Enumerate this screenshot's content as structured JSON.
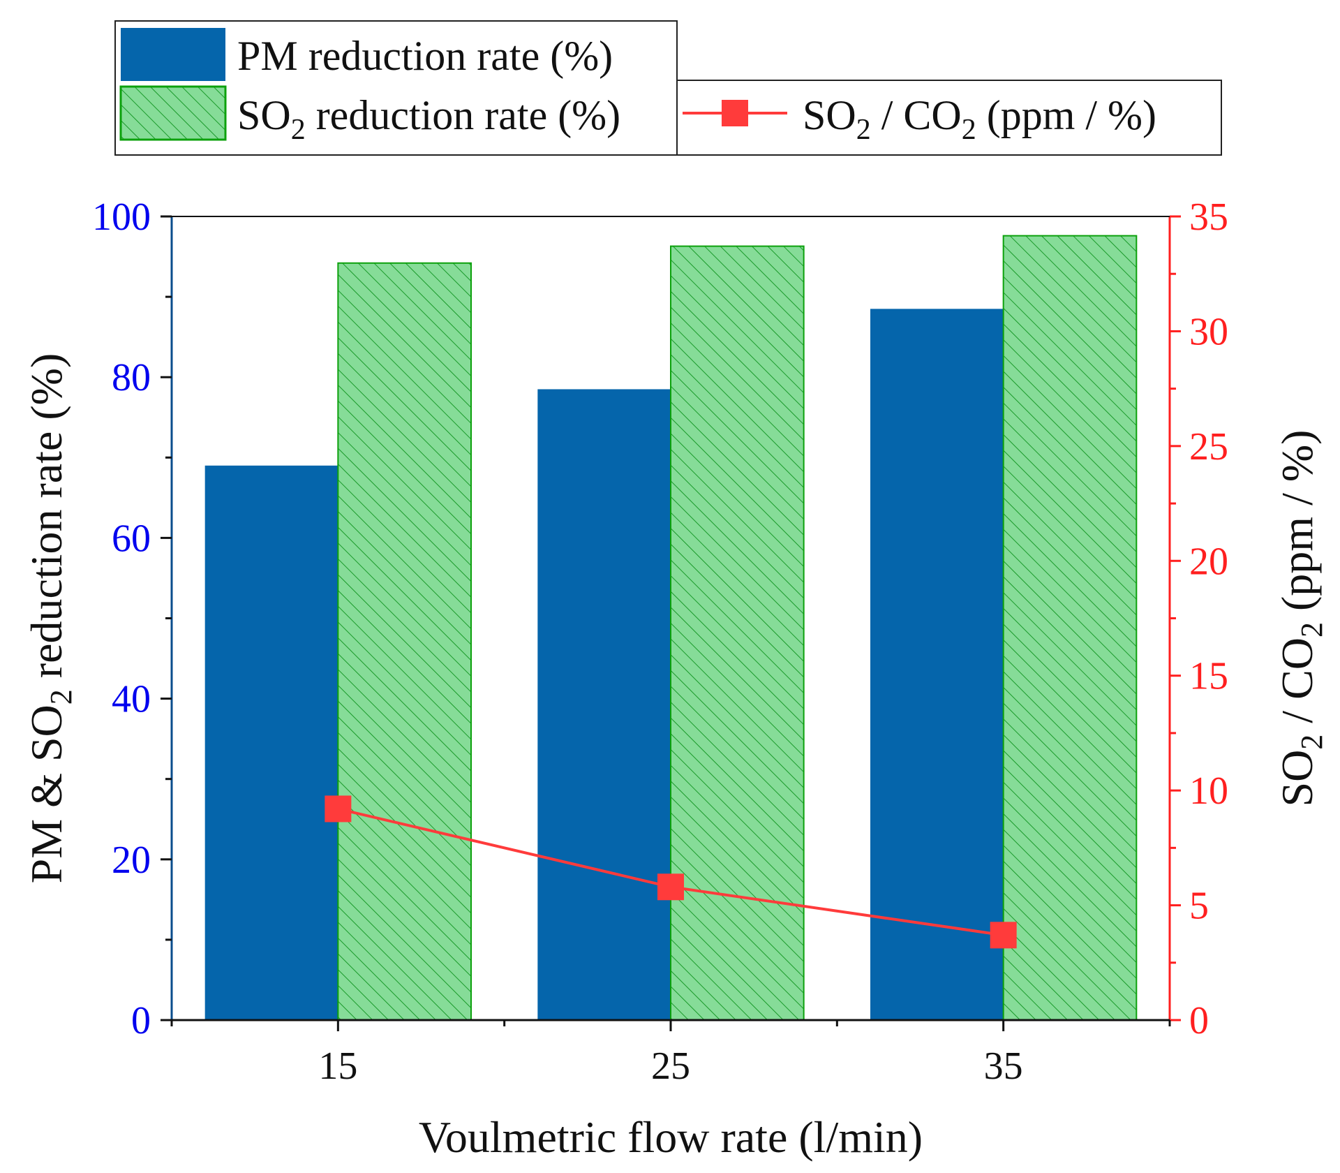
{
  "chart_data": {
    "type": "bar",
    "categories": [
      "15",
      "25",
      "35"
    ],
    "series": [
      {
        "name": "PM reduction rate (%)",
        "axis": "left",
        "kind": "bar",
        "color": "#0565ab",
        "values": [
          69,
          78.5,
          88.5
        ]
      },
      {
        "name": "SO2 reduction rate (%)",
        "axis": "left",
        "kind": "bar-hatched",
        "color": "#86dc98",
        "edge": "#0ca10c",
        "values": [
          94.2,
          96.3,
          97.6
        ]
      },
      {
        "name": "SO2 / CO2 (ppm / %)",
        "axis": "right",
        "kind": "line",
        "color": "#ff3b3b",
        "values": [
          9.2,
          5.8,
          3.7
        ]
      }
    ],
    "xlabel": "Voulmetric flow rate (l/min)",
    "ylabel": {
      "pre": "PM & SO",
      "sub": "2",
      "post": " reduction rate (%)"
    },
    "y2label": {
      "pre": "SO",
      "sub1": "2",
      "mid": " / CO",
      "sub2": "2",
      "post": " (ppm / %)"
    },
    "ylim": [
      0,
      100
    ],
    "y2lim": [
      0,
      35
    ],
    "yticks": [
      "0",
      "20",
      "40",
      "60",
      "80",
      "100"
    ],
    "y2ticks": [
      "0",
      "5",
      "10",
      "15",
      "20",
      "25",
      "30",
      "35"
    ],
    "legend": {
      "pm": {
        "text": "PM reduction rate (%)"
      },
      "so2": {
        "pre": "SO",
        "sub": "2",
        "post": " reduction rate (%)"
      },
      "ratio": {
        "pre": "SO",
        "sub1": "2",
        "mid": " / CO",
        "sub2": "2",
        "post": " (ppm / %)"
      }
    },
    "colors": {
      "left_axis": "#0000ee",
      "right_axis": "#ff1f1f",
      "left_spine": "#0a4d8c"
    }
  }
}
